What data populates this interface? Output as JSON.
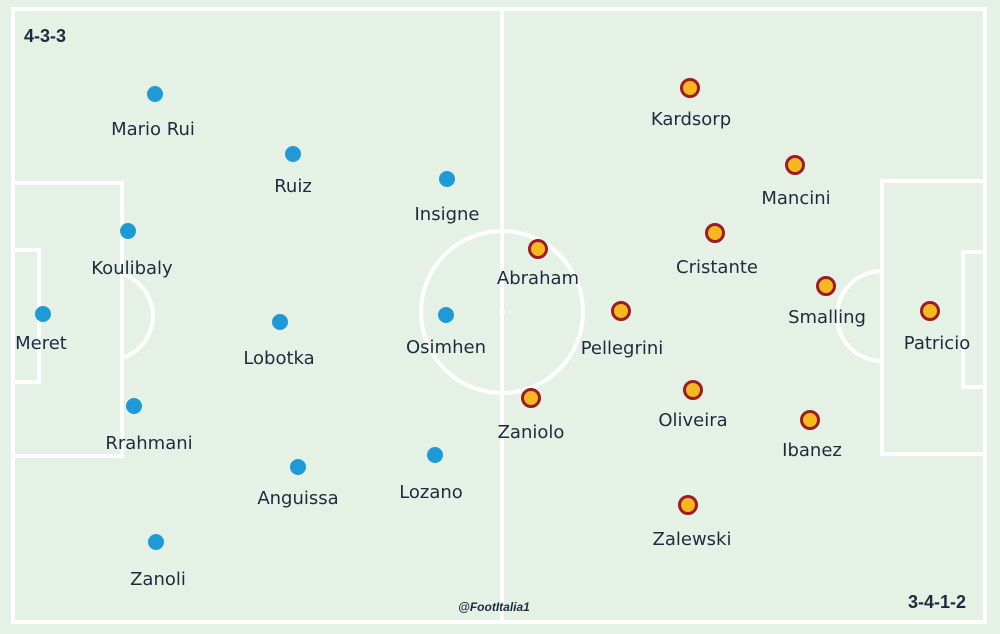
{
  "home": {
    "formation": "4-3-3",
    "color": "#1e9bd7",
    "players": [
      {
        "id": "mario-rui",
        "name": "Mario Rui"
      },
      {
        "id": "ruiz",
        "name": "Ruiz"
      },
      {
        "id": "insigne",
        "name": "Insigne"
      },
      {
        "id": "koulibaly",
        "name": "Koulibaly"
      },
      {
        "id": "meret",
        "name": "Meret"
      },
      {
        "id": "lobotka",
        "name": "Lobotka"
      },
      {
        "id": "osimhen",
        "name": "Osimhen"
      },
      {
        "id": "rrahmani",
        "name": "Rrahmani"
      },
      {
        "id": "anguissa",
        "name": "Anguissa"
      },
      {
        "id": "lozano",
        "name": "Lozano"
      },
      {
        "id": "zanoli",
        "name": "Zanoli"
      }
    ]
  },
  "away": {
    "formation": "3-4-1-2",
    "fill": "#f5b81e",
    "stroke": "#9b1c24",
    "players": [
      {
        "id": "kardsorp",
        "name": "Kardsorp"
      },
      {
        "id": "mancini",
        "name": "Mancini"
      },
      {
        "id": "abraham",
        "name": "Abraham"
      },
      {
        "id": "cristante",
        "name": "Cristante"
      },
      {
        "id": "smalling",
        "name": "Smalling"
      },
      {
        "id": "pellegrini",
        "name": "Pellegrini"
      },
      {
        "id": "patricio",
        "name": "Patricio"
      },
      {
        "id": "zaniolo",
        "name": "Zaniolo"
      },
      {
        "id": "oliveira",
        "name": "Oliveira"
      },
      {
        "id": "ibanez",
        "name": "Ibanez"
      },
      {
        "id": "zalewski",
        "name": "Zalewski"
      }
    ]
  },
  "credit": "@FootItalia1",
  "colors": {
    "pitch": "#e6f1e6",
    "lines": "#ffffff",
    "text": "#1d2b3f"
  }
}
